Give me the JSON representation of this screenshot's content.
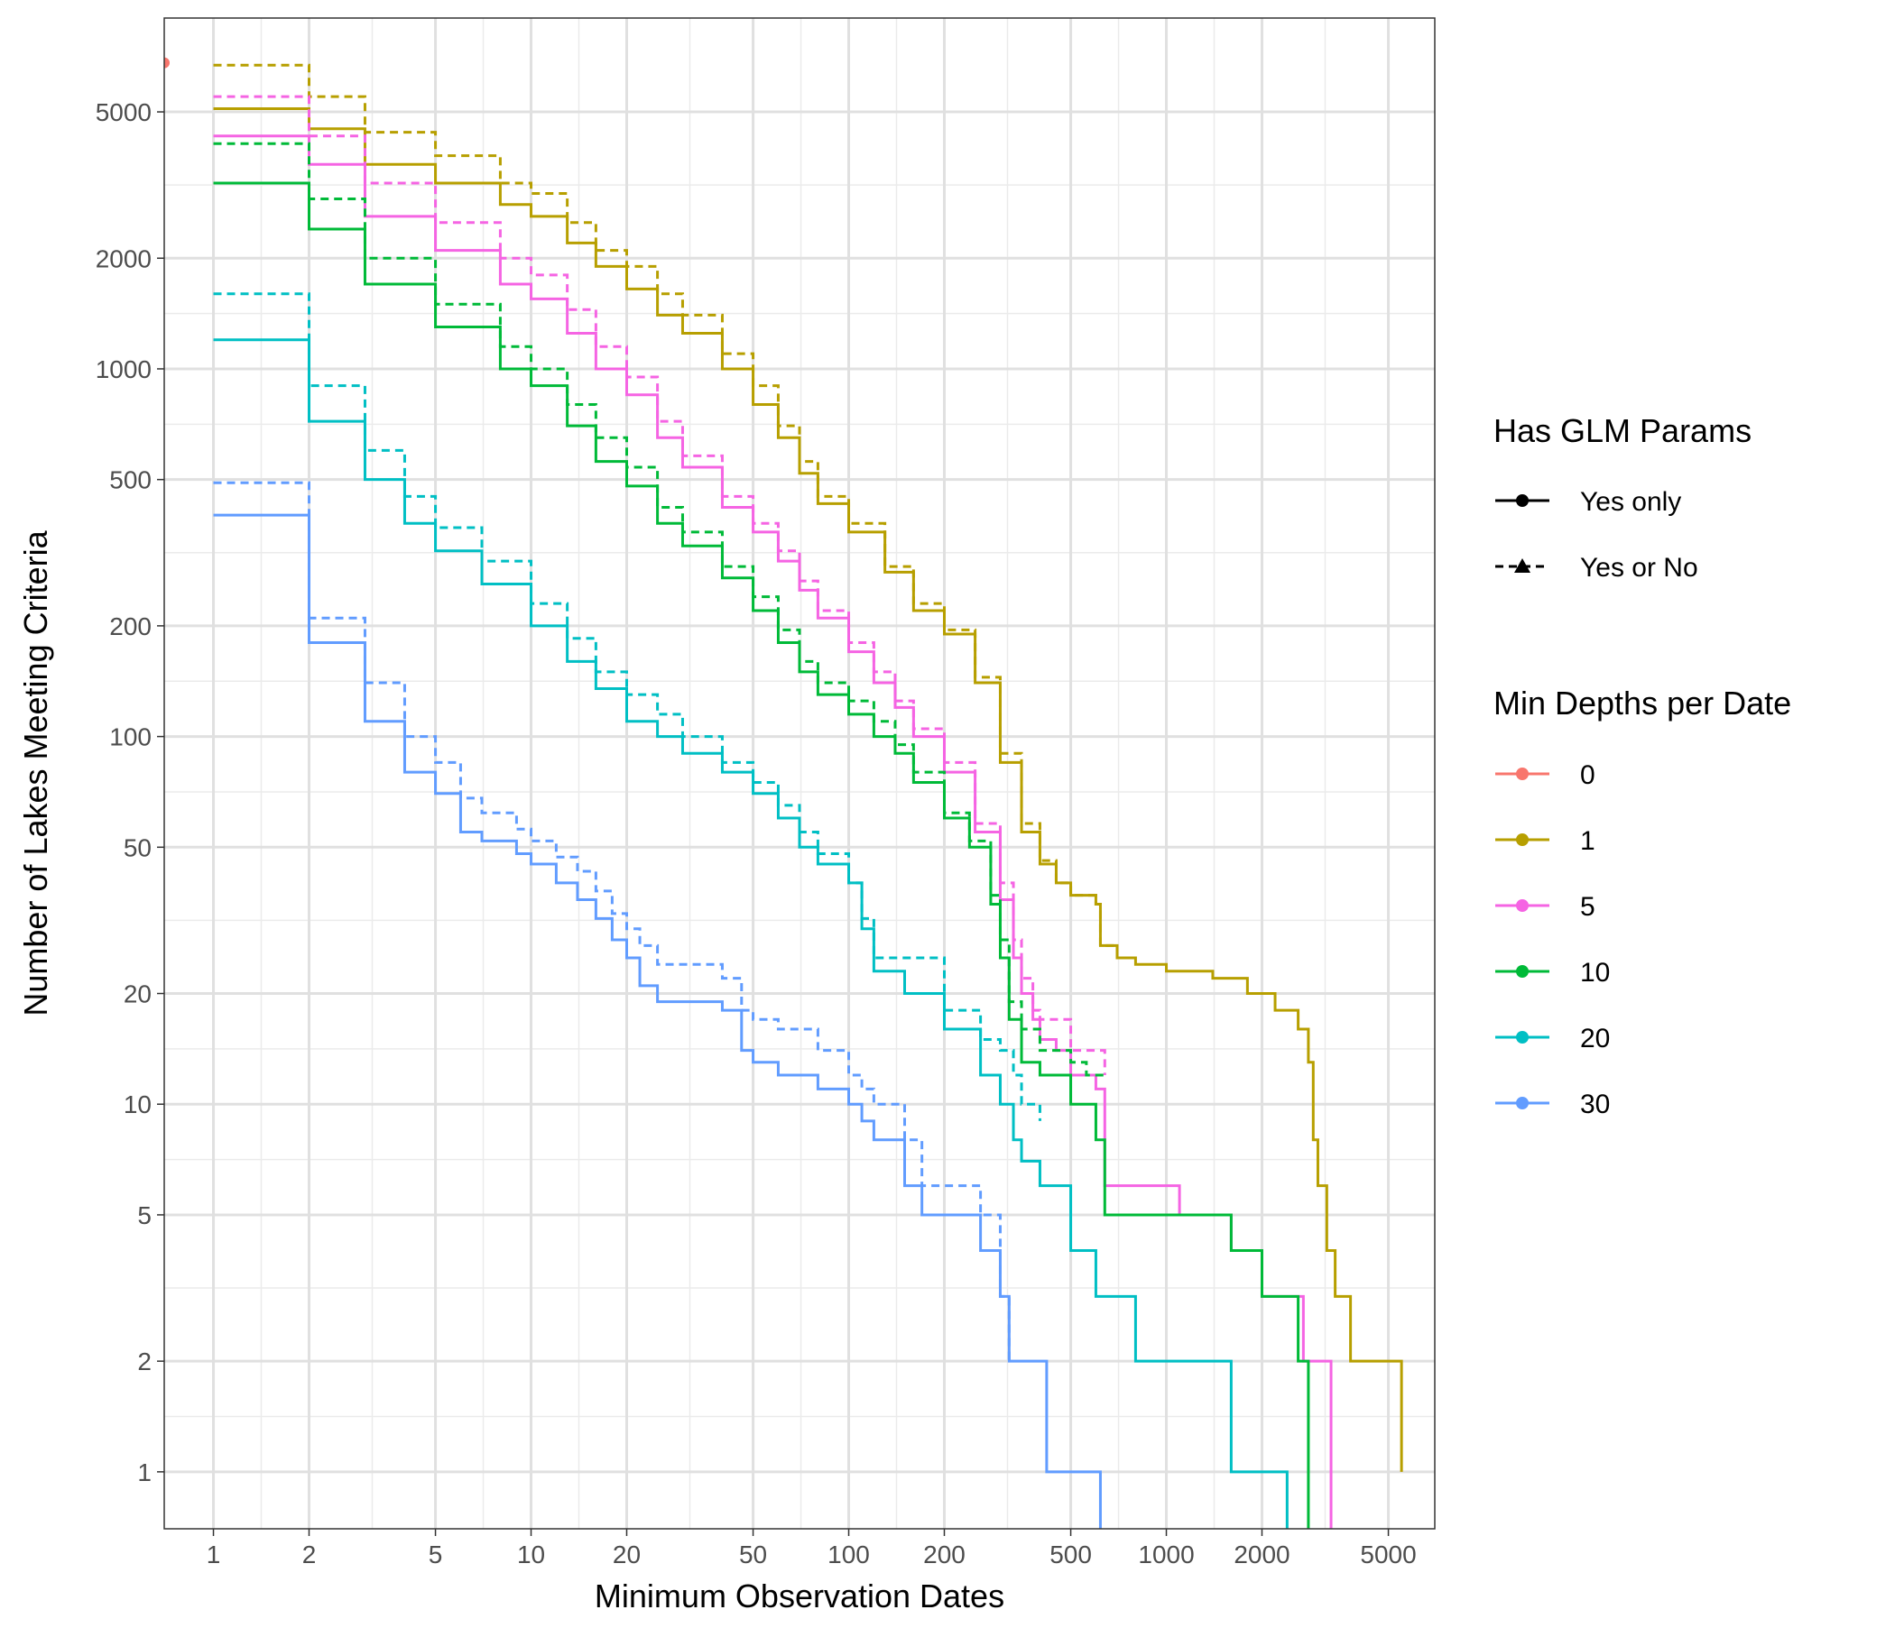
{
  "chart_data": {
    "type": "line",
    "xlabel": "Minimum Observation Dates",
    "ylabel": "Number of Lakes Meeting Criteria",
    "x_scale": "log10",
    "y_scale": "log10",
    "xlim": [
      0.7,
      7000
    ],
    "ylim": [
      0.7,
      9000
    ],
    "x_ticks": [
      1,
      2,
      5,
      10,
      20,
      50,
      100,
      200,
      500,
      1000,
      2000,
      5000
    ],
    "x_tick_labels": [
      "1",
      "2",
      "5",
      "10",
      "20",
      "50",
      "100",
      "200",
      "500",
      "1000",
      "2000",
      "5000"
    ],
    "y_ticks": [
      1,
      2,
      5,
      10,
      20,
      50,
      100,
      200,
      500,
      1000,
      2000,
      5000
    ],
    "y_tick_labels": [
      "1",
      "2",
      "5",
      "10",
      "20",
      "50",
      "100",
      "200",
      "500",
      "1000",
      "2000",
      "5000"
    ],
    "grid": true,
    "legend_placement": "right",
    "legends": [
      {
        "title": "Has GLM Params",
        "entries": [
          {
            "label": "Yes only",
            "linetype": "solid",
            "shape": "circle"
          },
          {
            "label": "Yes or No",
            "linetype": "dashed",
            "shape": "triangle"
          }
        ]
      },
      {
        "title": "Min Depths per Date",
        "entries": [
          {
            "label": "0",
            "color": "#F8766D"
          },
          {
            "label": "1",
            "color": "#B79F00"
          },
          {
            "label": "5",
            "color": "#F564E3"
          },
          {
            "label": "10",
            "color": "#00BA38"
          },
          {
            "label": "20",
            "color": "#00BFC4"
          },
          {
            "label": "30",
            "color": "#619CFF"
          }
        ]
      }
    ],
    "points": [
      {
        "depth": "0",
        "x": 0.7,
        "y": 6800,
        "color": "#F8766D"
      }
    ],
    "series": [
      {
        "depth": "1",
        "glm": "Yes only",
        "color": "#B79F00",
        "dash": false,
        "step": true,
        "x": [
          1,
          2,
          3,
          5,
          8,
          10,
          13,
          16,
          20,
          25,
          30,
          40,
          50,
          60,
          70,
          80,
          100,
          130,
          160,
          200,
          250,
          300,
          350,
          400,
          450,
          500,
          600,
          620,
          700,
          800,
          1000,
          1400,
          1800,
          2200,
          2600,
          2800,
          2900,
          3000,
          3200,
          3400,
          3800,
          5500
        ],
        "y": [
          5100,
          4500,
          3600,
          3200,
          2800,
          2600,
          2200,
          1900,
          1650,
          1400,
          1250,
          1000,
          800,
          650,
          520,
          430,
          360,
          280,
          220,
          190,
          140,
          85,
          55,
          45,
          40,
          37,
          35,
          27,
          25,
          24,
          23,
          22,
          20,
          18,
          16,
          13,
          8,
          6,
          4,
          3,
          2,
          1
        ]
      },
      {
        "depth": "1",
        "glm": "Yes or No",
        "color": "#B79F00",
        "dash": true,
        "step": true,
        "x": [
          1,
          2,
          3,
          5,
          8,
          10,
          13,
          16,
          20,
          25,
          30,
          40,
          50,
          60,
          70,
          80,
          100,
          130,
          160,
          200,
          250,
          300,
          350,
          400,
          450,
          500,
          600,
          620,
          700
        ],
        "y": [
          6700,
          5500,
          4400,
          3800,
          3200,
          3000,
          2500,
          2100,
          1900,
          1600,
          1400,
          1100,
          900,
          700,
          560,
          450,
          380,
          290,
          230,
          195,
          145,
          90,
          58,
          46,
          40,
          37,
          35,
          27,
          25
        ]
      },
      {
        "depth": "5",
        "glm": "Yes only",
        "color": "#F564E3",
        "dash": false,
        "step": true,
        "x": [
          1,
          2,
          3,
          5,
          8,
          10,
          13,
          16,
          20,
          25,
          30,
          40,
          50,
          60,
          70,
          80,
          100,
          120,
          140,
          160,
          200,
          250,
          300,
          330,
          350,
          380,
          400,
          450,
          500,
          600,
          640,
          1100,
          1600,
          2000,
          2700,
          3300
        ],
        "y": [
          4300,
          3600,
          2600,
          2100,
          1700,
          1550,
          1250,
          1000,
          850,
          650,
          540,
          420,
          360,
          300,
          250,
          210,
          170,
          140,
          120,
          100,
          80,
          55,
          36,
          25,
          20,
          17,
          15,
          14,
          12,
          11,
          6,
          5,
          4,
          3,
          2,
          0.7
        ]
      },
      {
        "depth": "5",
        "glm": "Yes or No",
        "color": "#F564E3",
        "dash": true,
        "step": true,
        "x": [
          1,
          2,
          3,
          5,
          8,
          10,
          13,
          16,
          20,
          25,
          30,
          40,
          50,
          60,
          70,
          80,
          100,
          120,
          140,
          160,
          200,
          250,
          300,
          330,
          350,
          380,
          400,
          450,
          500,
          640
        ],
        "y": [
          5500,
          4300,
          3200,
          2500,
          2000,
          1800,
          1450,
          1150,
          950,
          720,
          580,
          450,
          380,
          320,
          265,
          220,
          180,
          150,
          125,
          105,
          85,
          58,
          40,
          28,
          22,
          18,
          17,
          17,
          14,
          12
        ]
      },
      {
        "depth": "10",
        "glm": "Yes only",
        "color": "#00BA38",
        "dash": false,
        "step": true,
        "x": [
          1,
          2,
          3,
          5,
          8,
          10,
          13,
          16,
          20,
          25,
          30,
          40,
          50,
          60,
          70,
          80,
          100,
          120,
          140,
          160,
          200,
          240,
          280,
          300,
          320,
          350,
          400,
          500,
          600,
          640,
          1600,
          2000,
          2600,
          2800
        ],
        "y": [
          3200,
          2400,
          1700,
          1300,
          1000,
          900,
          700,
          560,
          480,
          380,
          330,
          270,
          220,
          180,
          150,
          130,
          115,
          100,
          90,
          75,
          60,
          50,
          35,
          25,
          17,
          13,
          12,
          10,
          8,
          5,
          4,
          3,
          2,
          0.7
        ]
      },
      {
        "depth": "10",
        "glm": "Yes or No",
        "color": "#00BA38",
        "dash": true,
        "step": true,
        "x": [
          1,
          2,
          3,
          5,
          8,
          10,
          13,
          16,
          20,
          25,
          30,
          40,
          50,
          60,
          70,
          80,
          100,
          120,
          140,
          160,
          200,
          240,
          280,
          300,
          320,
          350,
          400,
          500,
          560,
          600,
          640
        ],
        "y": [
          4100,
          2900,
          2000,
          1500,
          1150,
          1000,
          800,
          650,
          540,
          420,
          360,
          290,
          240,
          195,
          160,
          140,
          125,
          110,
          95,
          80,
          62,
          52,
          37,
          28,
          19,
          16,
          14,
          13,
          12,
          12,
          12
        ]
      },
      {
        "depth": "20",
        "glm": "Yes only",
        "color": "#00BFC4",
        "dash": false,
        "step": true,
        "x": [
          1,
          2,
          3,
          4,
          5,
          7,
          10,
          13,
          16,
          20,
          25,
          30,
          40,
          50,
          60,
          70,
          80,
          100,
          110,
          120,
          150,
          200,
          260,
          300,
          330,
          350,
          400,
          500,
          600,
          800,
          1600,
          2400
        ],
        "y": [
          1200,
          720,
          500,
          380,
          320,
          260,
          200,
          160,
          135,
          110,
          100,
          90,
          80,
          70,
          60,
          50,
          45,
          40,
          30,
          23,
          20,
          16,
          12,
          10,
          8,
          7,
          6,
          4,
          3,
          2,
          1,
          0.7
        ]
      },
      {
        "depth": "20",
        "glm": "Yes or No",
        "color": "#00BFC4",
        "dash": true,
        "step": true,
        "x": [
          1,
          2,
          3,
          4,
          5,
          7,
          10,
          13,
          16,
          20,
          25,
          30,
          40,
          50,
          60,
          70,
          80,
          100,
          110,
          120,
          150,
          200,
          260,
          300,
          330,
          350,
          400
        ],
        "y": [
          1600,
          900,
          600,
          450,
          370,
          300,
          230,
          185,
          150,
          130,
          115,
          100,
          85,
          75,
          65,
          55,
          48,
          40,
          32,
          25,
          25,
          18,
          15,
          14,
          12,
          10,
          9
        ]
      },
      {
        "depth": "30",
        "glm": "Yes only",
        "color": "#619CFF",
        "dash": false,
        "step": true,
        "x": [
          1,
          2,
          3,
          4,
          5,
          6,
          7,
          9,
          10,
          12,
          14,
          16,
          18,
          20,
          22,
          25,
          30,
          40,
          46,
          50,
          60,
          80,
          100,
          110,
          120,
          150,
          170,
          200,
          260,
          300,
          320,
          420,
          620
        ],
        "y": [
          400,
          180,
          110,
          80,
          70,
          55,
          52,
          48,
          45,
          40,
          36,
          32,
          28,
          25,
          21,
          19,
          19,
          18,
          14,
          13,
          12,
          11,
          10,
          9,
          8,
          6,
          5,
          5,
          4,
          3,
          2,
          1,
          0.7
        ]
      },
      {
        "depth": "30",
        "glm": "Yes or No",
        "color": "#619CFF",
        "dash": true,
        "step": true,
        "x": [
          1,
          2,
          3,
          4,
          5,
          6,
          7,
          9,
          10,
          12,
          14,
          16,
          18,
          20,
          22,
          25,
          30,
          40,
          46,
          50,
          60,
          80,
          100,
          110,
          120,
          150,
          170,
          200,
          260,
          300,
          320
        ],
        "y": [
          490,
          210,
          140,
          100,
          85,
          68,
          62,
          56,
          52,
          47,
          43,
          38,
          33,
          30,
          27,
          24,
          24,
          22,
          18,
          17,
          16,
          14,
          12,
          11,
          10,
          8,
          6,
          6,
          5,
          3,
          2
        ]
      }
    ]
  }
}
